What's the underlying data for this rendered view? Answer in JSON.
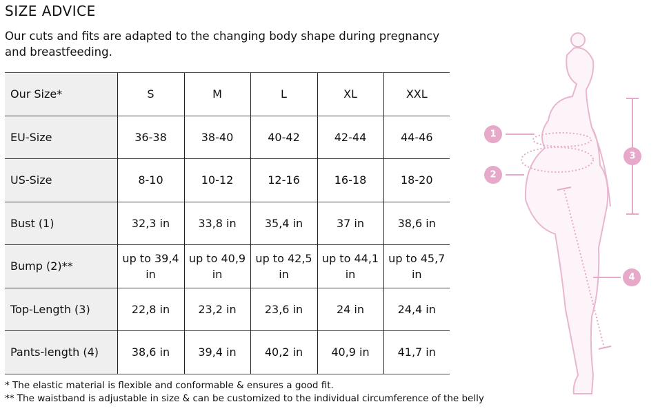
{
  "title": "SIZE ADVICE",
  "intro": "Our cuts and fits are adapted to the changing body shape during pregnancy and breastfeeding.",
  "table": {
    "header": [
      "Our Size*",
      "S",
      "M",
      "L",
      "XL",
      "XXL"
    ],
    "rows": [
      [
        "EU-Size",
        "36-38",
        "38-40",
        "40-42",
        "42-44",
        "44-46"
      ],
      [
        "US-Size",
        "8-10",
        "10-12",
        "12-16",
        "16-18",
        "18-20"
      ],
      [
        "Bust (1)",
        "32,3 in",
        "33,8 in",
        "35,4 in",
        "37 in",
        "38,6 in"
      ],
      [
        "Bump (2)**",
        "up to 39,4 in",
        "up to 40,9 in",
        "up to 42,5 in",
        "up to 44,1 in",
        "up to 45,7 in"
      ],
      [
        "Top-Length (3)",
        "22,8 in",
        "23,2 in",
        "23,6 in",
        "24 in",
        "24,4 in"
      ],
      [
        "Pants-length (4)",
        "38,6 in",
        "39,4 in",
        "40,2 in",
        "40,9 in",
        "41,7 in"
      ]
    ]
  },
  "footnotes": [
    "* The elastic material is flexible and conformable  & ensures a good fit.",
    "** The waistband is adjustable in size & can be customized to the individual circumference of the belly"
  ],
  "figure": {
    "labels": [
      "1",
      "2",
      "3",
      "4"
    ]
  }
}
